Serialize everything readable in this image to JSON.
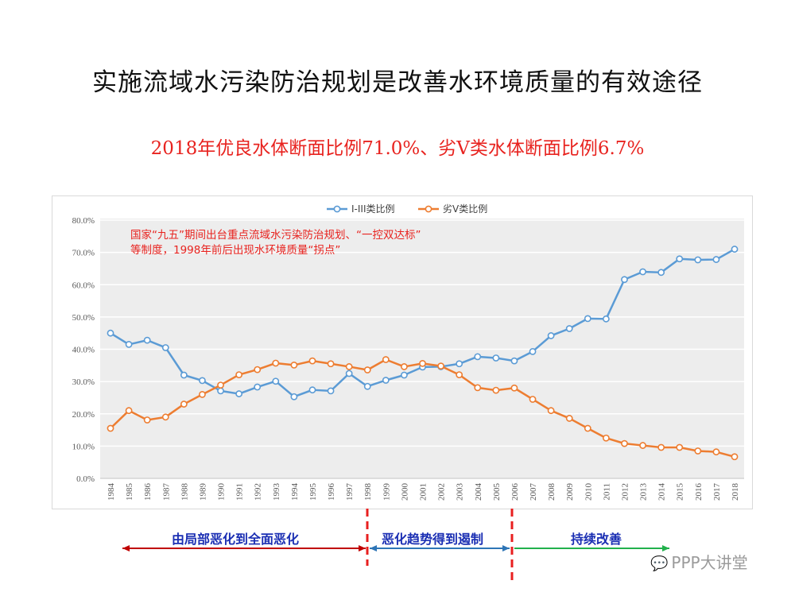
{
  "page": {
    "title": "实施流域水污染防治规划是改善水环境质量的有效途径",
    "subtitle": "2018年优良水体断面比例71.0%、劣V类水体断面比例6.7%"
  },
  "chart_data": {
    "type": "line",
    "categories": [
      "1984",
      "1985",
      "1986",
      "1987",
      "1988",
      "1989",
      "1990",
      "1991",
      "1992",
      "1993",
      "1994",
      "1995",
      "1996",
      "1997",
      "1998",
      "1999",
      "2000",
      "2001",
      "2002",
      "2003",
      "2004",
      "2005",
      "2006",
      "2007",
      "2008",
      "2009",
      "2010",
      "2011",
      "2012",
      "2013",
      "2014",
      "2015",
      "2016",
      "2017",
      "2018"
    ],
    "series": [
      {
        "name": "I-III类比例",
        "color": "#5b9bd5",
        "values": [
          45.0,
          41.5,
          42.8,
          40.5,
          32.0,
          30.3,
          27.1,
          26.2,
          28.3,
          30.1,
          25.3,
          27.4,
          27.1,
          32.5,
          28.5,
          30.4,
          32.0,
          34.5,
          34.6,
          35.5,
          37.7,
          37.3,
          36.4,
          39.3,
          44.2,
          46.4,
          49.5,
          49.4,
          61.6,
          64.0,
          63.8,
          68.0,
          67.7,
          67.8,
          71.0
        ]
      },
      {
        "name": "劣V类比例",
        "color": "#ed7d31",
        "values": [
          15.5,
          21.0,
          18.1,
          19.0,
          23.0,
          26.0,
          28.9,
          32.1,
          33.7,
          35.7,
          35.1,
          36.4,
          35.5,
          34.6,
          33.6,
          36.8,
          34.6,
          35.6,
          34.8,
          32.1,
          28.1,
          27.3,
          28.0,
          24.5,
          21.0,
          18.6,
          15.5,
          12.5,
          10.8,
          10.2,
          9.6,
          9.6,
          8.5,
          8.2,
          6.7
        ]
      }
    ],
    "ylim": [
      0,
      80
    ],
    "yticks": [
      "0.0%",
      "10.0%",
      "20.0%",
      "30.0%",
      "40.0%",
      "50.0%",
      "60.0%",
      "70.0%",
      "80.0%"
    ],
    "legend_position": "top-center",
    "grid": true,
    "annotation": [
      "国家“九五”期间出台重点流域水污染防治规划、“一控双达标”",
      "等制度，1998年前后出现水环境质量“拐点”"
    ]
  },
  "phases": {
    "phase1": {
      "label": "由局部恶化到全面恶化",
      "color": "#c00000"
    },
    "phase2": {
      "label": "恶化趋势得到遏制",
      "color": "#2e75b6"
    },
    "phase3": {
      "label": "持续改善",
      "color": "#22b14c"
    },
    "divider_color": "#e81f1f"
  },
  "watermark": "PPP大讲堂"
}
